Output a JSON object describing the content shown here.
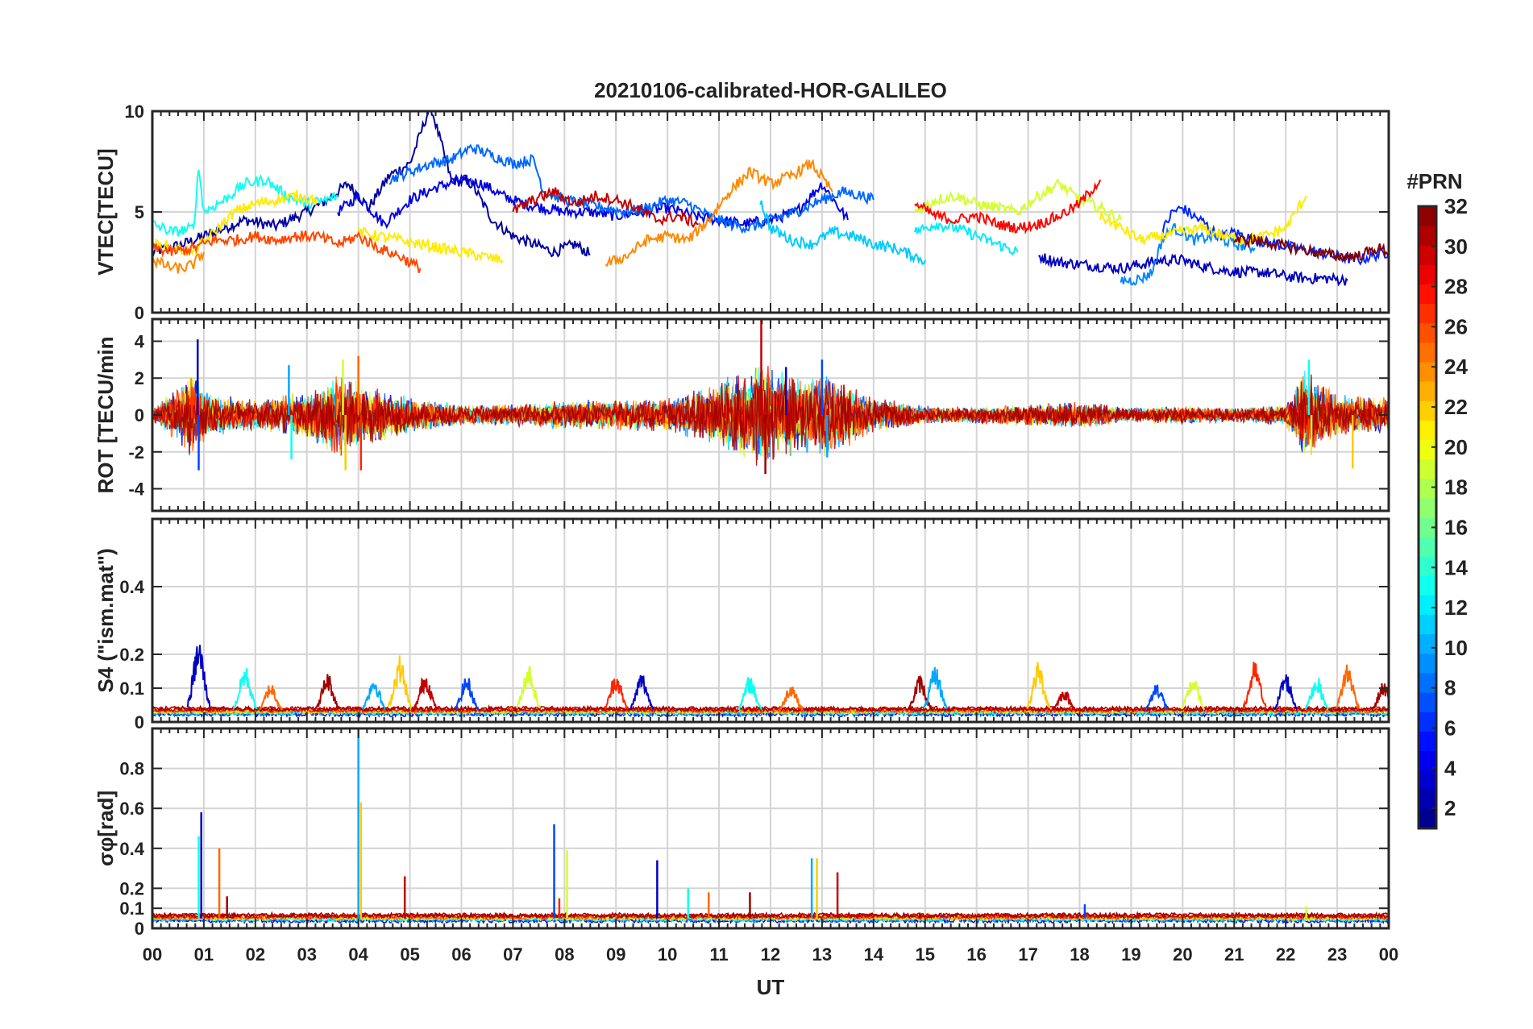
{
  "chart_data": {
    "type": "line",
    "title": "20210106-calibrated-HOR-GALILEO",
    "xlabel": "UT",
    "x_tick_labels": [
      "00",
      "01",
      "02",
      "03",
      "04",
      "05",
      "06",
      "07",
      "08",
      "09",
      "10",
      "11",
      "12",
      "13",
      "14",
      "15",
      "16",
      "17",
      "18",
      "19",
      "20",
      "21",
      "22",
      "23",
      "00"
    ],
    "xlim": [
      0,
      24
    ],
    "grid": true,
    "colorbar": {
      "label": "#PRN",
      "range": [
        1,
        32
      ],
      "ticks": [
        2,
        4,
        6,
        8,
        10,
        12,
        14,
        16,
        18,
        20,
        22,
        24,
        26,
        28,
        30,
        32
      ],
      "colormap": "jet"
    },
    "panels": [
      {
        "name": "vtec",
        "ylabel": "VTEC[TECU]",
        "ylim": [
          0,
          10
        ],
        "yticks": [
          0,
          5,
          10
        ],
        "series": [
          {
            "prn": 2,
            "x": [
              0.0,
              0.6,
              1.2,
              1.8,
              2.4,
              3.0,
              3.4,
              3.8,
              4.2,
              4.6,
              5.0,
              5.4,
              5.8,
              6.2,
              6.6,
              7.0,
              7.4,
              7.8,
              8.2,
              8.5
            ],
            "values": [
              3.0,
              3.4,
              4.0,
              4.6,
              4.3,
              5.0,
              5.6,
              6.4,
              5.2,
              6.8,
              7.4,
              10.3,
              6.6,
              6.4,
              4.6,
              3.8,
              3.4,
              3.0,
              3.4,
              2.9
            ]
          },
          {
            "prn": 4,
            "x": [
              3.6,
              4.0,
              4.5,
              5.0,
              5.5,
              6.0,
              6.4,
              6.8,
              7.2,
              7.6,
              8.0,
              8.5,
              9.0,
              9.5,
              10.0,
              10.5,
              11.0,
              11.5,
              12.0,
              12.5,
              13.0,
              13.5
            ],
            "values": [
              5.0,
              5.8,
              4.4,
              5.6,
              6.2,
              6.6,
              6.4,
              5.8,
              5.4,
              5.2,
              5.0,
              5.0,
              4.8,
              5.0,
              5.2,
              4.8,
              4.6,
              4.4,
              4.6,
              5.0,
              6.4,
              4.6
            ]
          },
          {
            "prn": 3,
            "x": [
              17.2,
              17.6,
              18.0,
              18.4,
              18.8,
              19.2,
              19.6,
              20.0,
              20.4,
              20.8,
              21.2,
              21.6,
              22.0,
              22.4,
              22.8,
              23.2
            ],
            "values": [
              2.8,
              2.5,
              2.4,
              2.3,
              2.2,
              2.4,
              2.6,
              2.6,
              2.3,
              2.1,
              2.0,
              2.0,
              1.8,
              1.7,
              1.7,
              1.6
            ]
          },
          {
            "prn": 6,
            "x": [
              19.6,
              19.8,
              20.0,
              20.2,
              20.4,
              20.6,
              20.8,
              21.0,
              21.4,
              21.8,
              22.2,
              22.6,
              23.0,
              23.4,
              23.8,
              24.0
            ],
            "values": [
              4.0,
              5.0,
              5.2,
              4.8,
              4.5,
              4.0,
              3.8,
              4.0,
              3.6,
              3.4,
              3.2,
              3.0,
              2.8,
              2.6,
              2.9,
              3.0
            ]
          },
          {
            "prn": 8,
            "x": [
              4.6,
              5.0,
              5.4,
              5.8,
              6.2,
              6.6,
              7.0,
              7.4,
              7.6,
              8.0,
              8.4,
              8.8,
              9.2,
              9.6,
              10.0,
              10.4,
              10.8,
              11.2,
              11.6,
              12.0,
              12.5,
              13.0,
              13.4,
              13.8,
              14.0
            ],
            "values": [
              6.6,
              7.0,
              7.4,
              7.6,
              8.2,
              7.8,
              7.4,
              7.6,
              6.0,
              5.6,
              5.4,
              5.2,
              5.0,
              5.2,
              5.6,
              5.4,
              4.8,
              4.4,
              4.2,
              4.6,
              5.0,
              5.6,
              6.0,
              5.8,
              5.6
            ]
          },
          {
            "prn": 9,
            "x": [
              18.8,
              19.0,
              19.2,
              19.4,
              19.6,
              19.8,
              20.0,
              20.2,
              20.6,
              21.0,
              21.4
            ],
            "values": [
              1.6,
              1.6,
              1.7,
              2.0,
              3.6,
              4.2,
              4.0,
              3.6,
              3.8,
              3.4,
              3.2
            ]
          },
          {
            "prn": 11,
            "x": [
              11.8,
              12.0,
              12.4,
              12.8,
              13.2,
              13.6,
              14.0,
              14.4,
              14.8,
              15.0
            ],
            "values": [
              5.6,
              4.2,
              3.6,
              3.4,
              4.0,
              3.8,
              3.4,
              3.2,
              2.8,
              2.6
            ]
          },
          {
            "prn": 12,
            "x": [
              14.8,
              15.2,
              15.6,
              16.0,
              16.4,
              16.8
            ],
            "values": [
              4.0,
              4.4,
              4.2,
              3.8,
              3.4,
              3.0
            ]
          },
          {
            "prn": 13,
            "x": [
              0.0,
              0.4,
              0.8,
              0.9,
              1.0,
              1.4,
              1.8,
              2.2,
              2.6,
              3.0,
              3.4,
              3.6
            ],
            "values": [
              4.4,
              4.0,
              4.2,
              7.2,
              5.0,
              5.6,
              6.4,
              6.6,
              5.8,
              5.4,
              5.6,
              5.8
            ]
          },
          {
            "prn": 19,
            "x": [
              14.8,
              15.2,
              15.6,
              16.0,
              16.4,
              16.8,
              17.2,
              17.6,
              18.0,
              18.4,
              18.8
            ],
            "values": [
              5.0,
              5.6,
              5.8,
              5.4,
              5.2,
              5.0,
              5.8,
              6.4,
              5.6,
              5.2,
              4.6
            ]
          },
          {
            "prn": 21,
            "x": [
              0.0,
              0.4,
              0.8,
              1.2,
              1.6,
              2.0,
              2.4,
              2.8,
              3.2
            ],
            "values": [
              3.4,
              3.2,
              3.0,
              4.0,
              5.0,
              5.4,
              5.6,
              5.8,
              5.6
            ]
          },
          {
            "prn": 21,
            "x": [
              4.0,
              4.4,
              4.8,
              5.2,
              5.6,
              6.0,
              6.4,
              6.8
            ],
            "values": [
              4.0,
              3.8,
              3.6,
              3.4,
              3.2,
              3.0,
              2.8,
              2.6
            ]
          },
          {
            "prn": 21,
            "x": [
              18.4,
              18.8,
              19.2,
              19.6,
              20.0,
              20.4,
              20.8,
              21.2,
              21.6,
              22.0,
              22.4
            ],
            "values": [
              4.8,
              4.2,
              3.6,
              3.8,
              4.0,
              4.2,
              3.8,
              3.6,
              3.8,
              4.2,
              5.8
            ]
          },
          {
            "prn": 24,
            "x": [
              0.0,
              0.2,
              0.4,
              0.6,
              0.8,
              1.0
            ],
            "values": [
              2.6,
              2.4,
              2.2,
              2.2,
              2.4,
              3.0
            ]
          },
          {
            "prn": 24,
            "x": [
              8.8,
              9.2,
              9.6,
              10.0,
              10.4,
              10.8,
              11.2,
              11.6,
              12.0,
              12.4,
              12.8,
              13.2
            ],
            "values": [
              2.4,
              2.8,
              3.6,
              3.8,
              3.6,
              4.6,
              6.0,
              7.0,
              6.4,
              6.8,
              7.4,
              6.0
            ]
          },
          {
            "prn": 26,
            "x": [
              0.0,
              0.4,
              0.8,
              1.2,
              1.6,
              2.0,
              2.4,
              2.8,
              3.2,
              3.6,
              4.0,
              4.4,
              4.8,
              5.2
            ],
            "values": [
              3.2,
              3.0,
              3.2,
              3.6,
              3.6,
              3.8,
              3.6,
              3.8,
              3.8,
              3.4,
              3.8,
              3.2,
              2.8,
              2.2
            ]
          },
          {
            "prn": 28,
            "x": [
              14.8,
              15.2,
              15.6,
              16.0,
              16.4,
              16.8,
              17.2,
              17.6,
              18.0,
              18.4
            ],
            "values": [
              5.4,
              4.8,
              4.6,
              4.8,
              4.4,
              4.2,
              4.4,
              4.8,
              5.4,
              6.6
            ]
          },
          {
            "prn": 30,
            "x": [
              7.0,
              7.4,
              7.8,
              8.2,
              8.6,
              9.0,
              9.4,
              9.8,
              10.2,
              10.6
            ],
            "values": [
              5.0,
              5.6,
              6.0,
              5.4,
              5.8,
              5.6,
              5.2,
              4.6,
              4.8,
              4.4
            ]
          },
          {
            "prn": 32,
            "x": [
              21.0,
              21.4,
              21.8,
              22.2,
              22.6,
              23.0,
              23.4,
              23.8,
              24.0
            ],
            "values": [
              3.6,
              3.6,
              3.4,
              3.2,
              3.0,
              2.8,
              2.8,
              3.2,
              3.0
            ]
          }
        ]
      },
      {
        "name": "rot",
        "ylabel": "ROT [TECU/min",
        "ylim": [
          -5.2,
          5.2
        ],
        "yticks": [
          -4,
          -2,
          0,
          2,
          4
        ],
        "noise_envelope": [
          [
            0,
            0.3
          ],
          [
            0.8,
            2.5
          ],
          [
            1.2,
            1.2
          ],
          [
            2.0,
            0.9
          ],
          [
            3.0,
            1.3
          ],
          [
            3.6,
            2.6
          ],
          [
            4.1,
            1.8
          ],
          [
            5.0,
            1.0
          ],
          [
            6.0,
            0.6
          ],
          [
            7.0,
            0.6
          ],
          [
            8.0,
            0.8
          ],
          [
            9.0,
            0.9
          ],
          [
            10.0,
            0.9
          ],
          [
            10.8,
            1.6
          ],
          [
            11.8,
            3.0
          ],
          [
            12.5,
            2.2
          ],
          [
            13.2,
            2.5
          ],
          [
            14.0,
            1.0
          ],
          [
            15.0,
            0.5
          ],
          [
            16.0,
            0.5
          ],
          [
            17.0,
            0.6
          ],
          [
            18.0,
            0.8
          ],
          [
            19.0,
            0.4
          ],
          [
            20.0,
            0.5
          ],
          [
            21.0,
            0.4
          ],
          [
            22.0,
            0.6
          ],
          [
            22.4,
            2.6
          ],
          [
            23.0,
            1.2
          ],
          [
            24.0,
            1.0
          ]
        ],
        "spikes": [
          [
            0.88,
            4.1
          ],
          [
            0.9,
            -3.0
          ],
          [
            2.65,
            2.7
          ],
          [
            2.7,
            -2.4
          ],
          [
            3.7,
            3.0
          ],
          [
            3.75,
            -3.0
          ],
          [
            4.0,
            3.2
          ],
          [
            4.05,
            -3.0
          ],
          [
            11.82,
            5.2
          ],
          [
            11.9,
            -3.2
          ],
          [
            12.3,
            2.6
          ],
          [
            13.0,
            3.0
          ],
          [
            13.1,
            -2.3
          ],
          [
            22.45,
            3.0
          ],
          [
            22.5,
            -1.9
          ],
          [
            23.3,
            -2.9
          ]
        ]
      },
      {
        "name": "s4",
        "ylabel": "S4 (\"ism.mat\")",
        "ylim": [
          0,
          0.6
        ],
        "yticks": [
          0,
          0.1,
          0.2,
          0.4
        ],
        "baseline": 0.03,
        "bursts": [
          [
            0.9,
            0.25
          ],
          [
            1.8,
            0.17
          ],
          [
            2.3,
            0.12
          ],
          [
            3.4,
            0.15
          ],
          [
            4.3,
            0.14
          ],
          [
            4.8,
            0.2
          ],
          [
            5.3,
            0.15
          ],
          [
            6.1,
            0.14
          ],
          [
            7.3,
            0.18
          ],
          [
            9.0,
            0.15
          ],
          [
            9.5,
            0.15
          ],
          [
            11.6,
            0.14
          ],
          [
            12.4,
            0.12
          ],
          [
            14.9,
            0.14
          ],
          [
            15.2,
            0.17
          ],
          [
            17.2,
            0.18
          ],
          [
            17.7,
            0.1
          ],
          [
            19.5,
            0.12
          ],
          [
            20.2,
            0.14
          ],
          [
            21.4,
            0.18
          ],
          [
            22.0,
            0.15
          ],
          [
            22.6,
            0.14
          ],
          [
            23.2,
            0.18
          ],
          [
            23.9,
            0.12
          ]
        ]
      },
      {
        "name": "sigma_phi",
        "ylabel": "σφ[rad]",
        "ylim": [
          0,
          1.0
        ],
        "yticks": [
          0,
          0.1,
          0.2,
          0.4,
          0.6,
          0.8
        ],
        "baseline": 0.05,
        "spikes": [
          [
            0.95,
            0.58
          ],
          [
            0.9,
            0.46
          ],
          [
            1.3,
            0.4
          ],
          [
            1.45,
            0.16
          ],
          [
            4.0,
            1.0
          ],
          [
            4.05,
            0.63
          ],
          [
            4.9,
            0.26
          ],
          [
            7.8,
            0.52
          ],
          [
            8.05,
            0.39
          ],
          [
            7.9,
            0.15
          ],
          [
            9.8,
            0.34
          ],
          [
            10.4,
            0.2
          ],
          [
            10.8,
            0.18
          ],
          [
            11.6,
            0.18
          ],
          [
            12.8,
            0.35
          ],
          [
            12.9,
            0.35
          ],
          [
            13.3,
            0.28
          ],
          [
            18.1,
            0.12
          ],
          [
            22.4,
            0.11
          ]
        ]
      }
    ]
  }
}
